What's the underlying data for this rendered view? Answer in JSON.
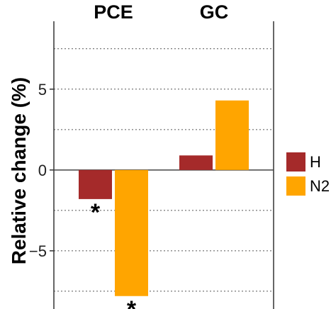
{
  "chart_data": {
    "type": "bar",
    "facets": [
      "PCE",
      "GC"
    ],
    "series": [
      {
        "name": "H",
        "color": "#A52A2A",
        "values": [
          -1.8,
          0.9
        ]
      },
      {
        "name": "N2",
        "color": "#FFA500",
        "values": [
          -7.8,
          4.3
        ]
      }
    ],
    "significance": [
      {
        "facet": "PCE",
        "series": "H",
        "mark": "*"
      },
      {
        "facet": "PCE",
        "series": "N2",
        "mark": "*"
      }
    ],
    "ylabel": "Relative change (%)",
    "ylim": [
      -8.6,
      9.2
    ],
    "yticks": [
      -5,
      0,
      5
    ],
    "ytick_labels": [
      "−5",
      "0",
      "5"
    ],
    "minor_grid": [
      -7.5,
      -2.5,
      2.5,
      7.5
    ],
    "grid": "dotted horizontal",
    "legend_position": "right"
  }
}
